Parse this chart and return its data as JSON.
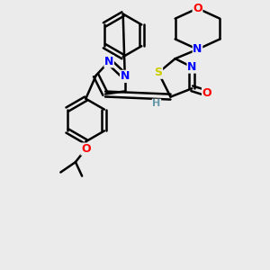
{
  "bg_color": "#ebebeb",
  "atom_colors": {
    "C": "#000000",
    "N": "#0000ff",
    "O": "#ff0000",
    "S": "#cccc00",
    "H": "#6699aa"
  },
  "bond_color": "#000000",
  "bond_width": 1.8,
  "font_size": 9
}
